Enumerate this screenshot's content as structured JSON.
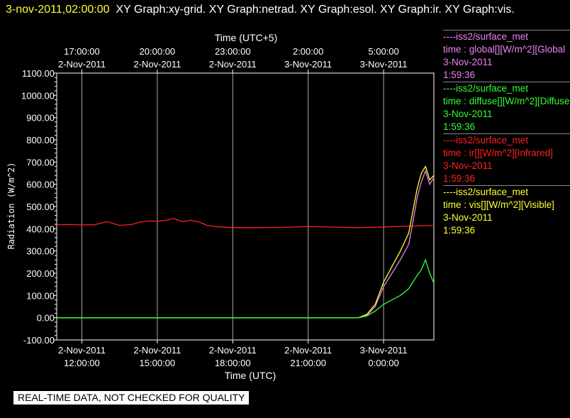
{
  "title": {
    "date": "3-nov-2011,02:00:00",
    "rest": "XY Graph:xy-grid.  XY Graph:netrad.  XY Graph:esol.  XY Graph:ir.  XY Graph:vis."
  },
  "notice": "REAL-TIME DATA, NOT CHECKED FOR QUALITY",
  "colors": {
    "global": "#ee82ee",
    "diffuse": "#33ff33",
    "ir": "#ff2020",
    "vis": "#ffff33"
  },
  "legend": [
    {
      "source": "----iss2/surface_met",
      "desc": "time : global[][W/m^2][Global",
      "date": "3-Nov-2011",
      "time": "1:59:36",
      "color": "#ee82ee"
    },
    {
      "source": "----iss2/surface_met",
      "desc": "time : diffuse[][W/m^2][Diffuse",
      "date": "3-Nov-2011",
      "time": "1:59:36",
      "color": "#33ff33"
    },
    {
      "source": "----iss2/surface_met",
      "desc": "time : ir[][W/m^2][Infrared]",
      "date": "3-Nov-2011",
      "time": "1:59:36",
      "color": "#ff2020"
    },
    {
      "source": "----iss2/surface_met",
      "desc": "time : vis[][W/m^2][Visible]",
      "date": "3-Nov-2011",
      "time": "1:59:36",
      "color": "#ffff33"
    }
  ],
  "chart_data": {
    "type": "line",
    "ylabel": "Radiation (W/m^2)",
    "xlabel": "Time (UTC)",
    "x2label": "Time (UTC+5)",
    "ylim": [
      -100,
      1100
    ],
    "xlim": [
      "2011-11-02 11:00",
      "2011-11-03 02:00"
    ],
    "grid": true,
    "yticks": [
      "1100.00",
      "1000.00",
      "900.00",
      "800.00",
      "700.00",
      "600.00",
      "500.00",
      "400.00",
      "300.00",
      "200.00",
      "100.00",
      "0.00",
      "-100.00"
    ],
    "xticks_bottom": [
      {
        "x": "2011-11-02 12:00",
        "date": "2-Nov-2011",
        "time": "12:00:00"
      },
      {
        "x": "2011-11-02 15:00",
        "date": "2-Nov-2011",
        "time": "15:00:00"
      },
      {
        "x": "2011-11-02 18:00",
        "date": "2-Nov-2011",
        "time": "18:00:00"
      },
      {
        "x": "2011-11-02 21:00",
        "date": "2-Nov-2011",
        "time": "21:00:00"
      },
      {
        "x": "2011-11-03 00:00",
        "date": "3-Nov-2011",
        "time": "0:00:00"
      }
    ],
    "xticks_top": [
      {
        "x": "2011-11-02 12:00",
        "date": "2-Nov-2011",
        "time": "17:00:00"
      },
      {
        "x": "2011-11-02 15:00",
        "date": "2-Nov-2011",
        "time": "20:00:00"
      },
      {
        "x": "2011-11-02 18:00",
        "date": "2-Nov-2011",
        "time": "23:00:00"
      },
      {
        "x": "2011-11-02 21:00",
        "date": "3-Nov-2011",
        "time": "2:00:00"
      },
      {
        "x": "2011-11-03 00:00",
        "date": "3-Nov-2011",
        "time": "5:00:00"
      }
    ],
    "series": [
      {
        "name": "ir",
        "color": "#ff2020",
        "x": [
          "2011-11-02 11:00",
          "2011-11-02 11:30",
          "2011-11-02 12:00",
          "2011-11-02 12:30",
          "2011-11-02 13:00",
          "2011-11-02 13:30",
          "2011-11-02 14:00",
          "2011-11-02 14:20",
          "2011-11-02 14:40",
          "2011-11-02 15:00",
          "2011-11-02 15:20",
          "2011-11-02 15:40",
          "2011-11-02 16:00",
          "2011-11-02 16:20",
          "2011-11-02 16:40",
          "2011-11-02 17:00",
          "2011-11-02 17:30",
          "2011-11-02 18:00",
          "2011-11-02 19:00",
          "2011-11-02 20:00",
          "2011-11-02 21:00",
          "2011-11-02 22:00",
          "2011-11-02 23:00",
          "2011-11-03 00:00",
          "2011-11-03 01:00",
          "2011-11-03 02:00"
        ],
        "values": [
          418,
          419,
          417,
          418,
          432,
          415,
          420,
          430,
          436,
          433,
          438,
          446,
          432,
          438,
          430,
          414,
          408,
          405,
          405,
          406,
          410,
          407,
          405,
          408,
          412,
          415
        ]
      },
      {
        "name": "global",
        "color": "#ee82ee",
        "x": [
          "2011-11-02 11:00",
          "2011-11-02 20:00",
          "2011-11-02 23:00",
          "2011-11-02 23:20",
          "2011-11-02 23:40",
          "2011-11-03 00:00",
          "2011-11-03 00:20",
          "2011-11-03 00:40",
          "2011-11-03 01:00",
          "2011-11-03 01:10",
          "2011-11-03 01:20",
          "2011-11-03 01:30",
          "2011-11-03 01:40",
          "2011-11-03 01:50",
          "2011-11-03 02:00"
        ],
        "values": [
          0,
          0,
          0,
          10,
          50,
          140,
          200,
          260,
          330,
          430,
          540,
          610,
          660,
          600,
          630
        ]
      },
      {
        "name": "vis",
        "color": "#ffff33",
        "x": [
          "2011-11-02 11:00",
          "2011-11-02 20:00",
          "2011-11-02 23:00",
          "2011-11-02 23:20",
          "2011-11-02 23:40",
          "2011-11-03 00:00",
          "2011-11-03 00:20",
          "2011-11-03 00:40",
          "2011-11-03 01:00",
          "2011-11-03 01:10",
          "2011-11-03 01:20",
          "2011-11-03 01:30",
          "2011-11-03 01:40",
          "2011-11-03 01:50",
          "2011-11-03 02:00"
        ],
        "values": [
          0,
          0,
          0,
          15,
          60,
          160,
          230,
          300,
          380,
          480,
          580,
          650,
          680,
          620,
          640
        ]
      },
      {
        "name": "diffuse",
        "color": "#33ff33",
        "x": [
          "2011-11-02 11:00",
          "2011-11-02 20:00",
          "2011-11-02 23:00",
          "2011-11-02 23:20",
          "2011-11-02 23:40",
          "2011-11-03 00:00",
          "2011-11-03 00:20",
          "2011-11-03 00:40",
          "2011-11-03 01:00",
          "2011-11-03 01:10",
          "2011-11-03 01:20",
          "2011-11-03 01:30",
          "2011-11-03 01:40",
          "2011-11-03 01:50",
          "2011-11-03 02:00"
        ],
        "values": [
          0,
          0,
          0,
          8,
          30,
          60,
          80,
          100,
          130,
          160,
          190,
          215,
          260,
          200,
          155
        ]
      }
    ]
  }
}
